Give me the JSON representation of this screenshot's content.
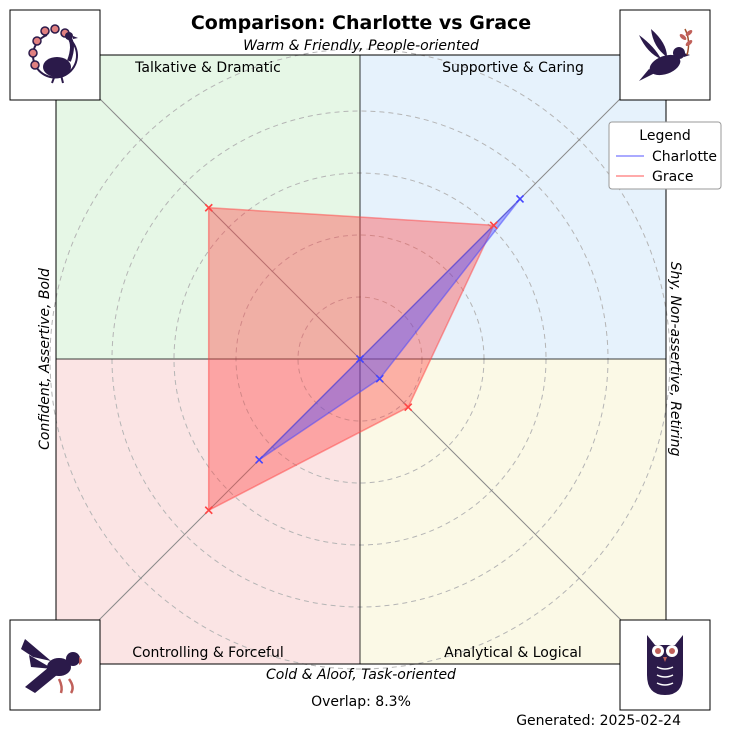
{
  "chart_data": {
    "type": "radar",
    "title": "Comparison: Charlotte vs Grace",
    "axes": {
      "top": "Warm & Friendly, People-oriented",
      "bottom": "Cold & Aloof, Task-oriented",
      "left": "Confident, Assertive, Bold",
      "right": "Shy, Non-assertive, Retiring"
    },
    "quadrants": [
      {
        "label": "Talkative & Dramatic",
        "color": "#e6f7e6",
        "icon": "peacock-icon"
      },
      {
        "label": "Supportive & Caring",
        "color": "#e6f2fc",
        "icon": "dove-icon"
      },
      {
        "label": "Controlling & Forceful",
        "color": "#fbe4e4",
        "icon": "eagle-icon"
      },
      {
        "label": "Analytical & Logical",
        "color": "#fbf9e6",
        "icon": "owl-icon"
      }
    ],
    "directions": [
      "Supportive & Caring",
      "Analytical & Logical",
      "Controlling & Forceful",
      "Talkative & Dramatic"
    ],
    "range": [
      0,
      10
    ],
    "grid_rings": [
      2,
      4,
      6,
      8,
      10
    ],
    "series": [
      {
        "name": "Charlotte",
        "color": "#4444ff",
        "values": [
          7.3,
          0.9,
          4.6,
          0.0
        ]
      },
      {
        "name": "Grace",
        "color": "#ff4444",
        "values": [
          6.1,
          2.2,
          6.9,
          6.9
        ]
      }
    ],
    "legend": {
      "title": "Legend",
      "position": "top-right"
    },
    "overlap_text": "Overlap: 8.3%",
    "generated_text": "Generated: 2025-02-24"
  }
}
